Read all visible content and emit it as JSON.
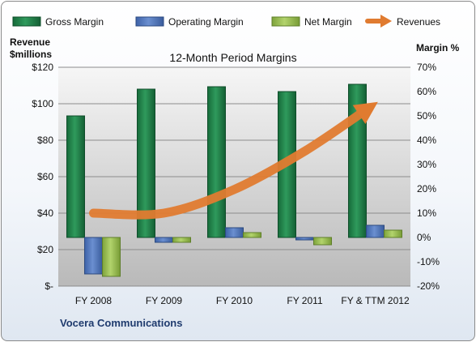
{
  "chart_data": {
    "type": "bar",
    "title": "12-Month Period Margins",
    "categories": [
      "FY 2008",
      "FY 2009",
      "FY 2010",
      "FY 2011",
      "FY & TTM 2012"
    ],
    "series": [
      {
        "name": "Gross Margin",
        "axis": "right",
        "values": [
          50,
          61,
          62,
          60,
          63
        ],
        "color": "#1e7a45"
      },
      {
        "name": "Operating Margin",
        "axis": "right",
        "values": [
          -15,
          -2,
          4,
          -1,
          5
        ],
        "color": "#4a72b8"
      },
      {
        "name": "Net Margin",
        "axis": "right",
        "values": [
          -16,
          -2,
          2,
          -3,
          3
        ],
        "color": "#93b84c"
      },
      {
        "name": "Revenues",
        "axis": "left",
        "type": "line",
        "values": [
          40,
          40,
          53,
          74,
          100
        ],
        "color": "#e07b30"
      }
    ],
    "left_axis": {
      "label_lines": [
        "Revenue",
        "$millions"
      ],
      "ylim": [
        0,
        120
      ],
      "tick_values": [
        0,
        20,
        40,
        60,
        80,
        100,
        120
      ],
      "tick_labels": [
        "$-",
        "$20",
        "$40",
        "$60",
        "$80",
        "$100",
        "$120"
      ]
    },
    "right_axis": {
      "label": "Margin %",
      "ylim": [
        -20,
        70
      ],
      "tick_values": [
        -20,
        -10,
        0,
        10,
        20,
        30,
        40,
        50,
        60,
        70
      ],
      "tick_labels": [
        "-20%",
        "-10%",
        "0%",
        "10%",
        "20%",
        "30%",
        "40%",
        "50%",
        "60%",
        "70%"
      ]
    },
    "legend_position": "top",
    "grid": true
  },
  "footer": {
    "company": "Vocera Communications"
  }
}
